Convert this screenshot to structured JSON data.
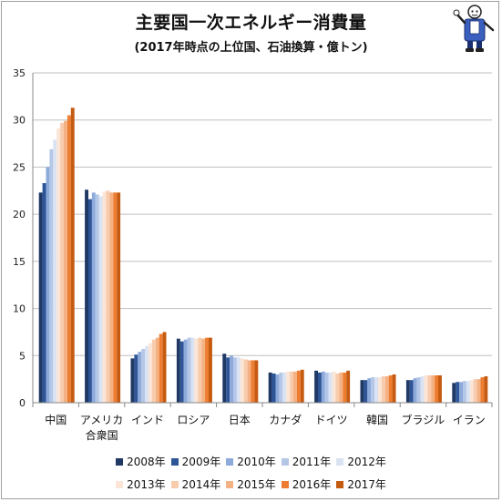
{
  "chart_data": {
    "type": "bar",
    "title": "主要国一次エネルギー消費量",
    "subtitle": "(2017年時点の上位国、石油換算・億トン)",
    "categories": [
      "中国",
      "アメリカ\n合衆国",
      "インド",
      "ロシア",
      "日本",
      "カナダ",
      "ドイツ",
      "韓国",
      "ブラジル",
      "イラン"
    ],
    "ylim": [
      0,
      35
    ],
    "yticks": [
      0,
      5,
      10,
      15,
      20,
      25,
      30,
      35
    ],
    "grid": true,
    "legend_position": "bottom",
    "series": [
      {
        "name": "2008年",
        "color": "#1f3864",
        "values": [
          22.3,
          22.6,
          4.7,
          6.8,
          5.2,
          3.2,
          3.4,
          2.4,
          2.4,
          2.1
        ]
      },
      {
        "name": "2009年",
        "color": "#2e5597",
        "values": [
          23.3,
          21.6,
          5.1,
          6.5,
          4.8,
          3.1,
          3.2,
          2.4,
          2.4,
          2.2
        ]
      },
      {
        "name": "2010年",
        "color": "#8eaadb",
        "values": [
          25.0,
          22.3,
          5.4,
          6.7,
          5.0,
          3.0,
          3.3,
          2.6,
          2.6,
          2.2
        ]
      },
      {
        "name": "2011年",
        "color": "#b4c7e7",
        "values": [
          26.9,
          22.1,
          5.7,
          6.9,
          4.8,
          3.2,
          3.2,
          2.7,
          2.7,
          2.3
        ]
      },
      {
        "name": "2012年",
        "color": "#dae3f3",
        "values": [
          27.9,
          21.9,
          6.0,
          6.9,
          4.8,
          3.2,
          3.2,
          2.7,
          2.8,
          2.3
        ]
      },
      {
        "name": "2013年",
        "color": "#fbe5d6",
        "values": [
          29.1,
          22.4,
          6.3,
          6.8,
          4.7,
          3.3,
          3.3,
          2.7,
          2.9,
          2.4
        ]
      },
      {
        "name": "2014年",
        "color": "#f8cbad",
        "values": [
          29.7,
          22.5,
          6.7,
          6.9,
          4.6,
          3.3,
          3.1,
          2.8,
          2.9,
          2.5
        ]
      },
      {
        "name": "2015年",
        "color": "#f4b183",
        "values": [
          29.9,
          22.3,
          6.9,
          6.8,
          4.5,
          3.3,
          3.2,
          2.8,
          2.9,
          2.5
        ]
      },
      {
        "name": "2016年",
        "color": "#ed7d31",
        "values": [
          30.5,
          22.3,
          7.3,
          6.9,
          4.5,
          3.4,
          3.2,
          2.9,
          2.9,
          2.7
        ]
      },
      {
        "name": "2017年",
        "color": "#c55a11",
        "values": [
          31.3,
          22.3,
          7.5,
          6.9,
          4.5,
          3.5,
          3.4,
          3.0,
          2.9,
          2.8
        ]
      }
    ]
  },
  "mascot": {
    "icon": "mascot-illustration-icon"
  }
}
